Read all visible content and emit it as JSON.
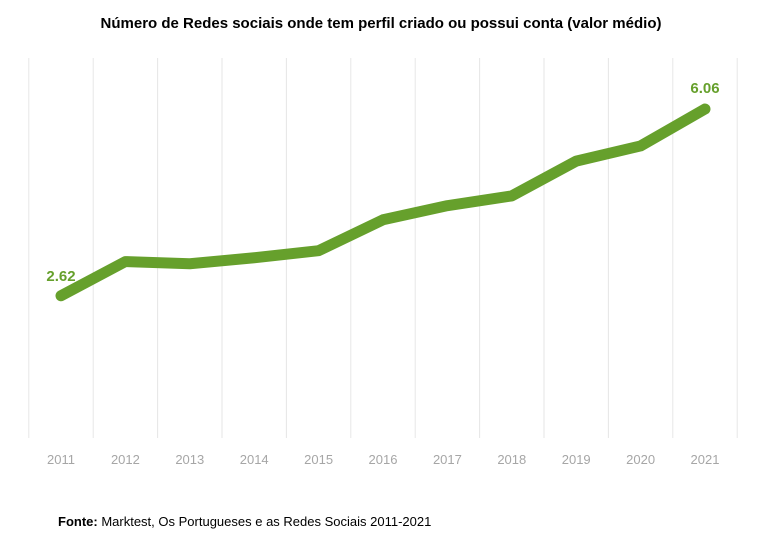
{
  "chart_data": {
    "type": "line",
    "title": "Número de Redes sociais onde tem perfil criado ou possui conta (valor médio)",
    "categories": [
      "2011",
      "2012",
      "2013",
      "2014",
      "2015",
      "2016",
      "2017",
      "2018",
      "2019",
      "2020",
      "2021"
    ],
    "series": [
      {
        "name": "Valor médio",
        "values": [
          2.62,
          3.25,
          3.21,
          3.32,
          3.45,
          4.02,
          4.28,
          4.46,
          5.1,
          5.38,
          6.06
        ]
      }
    ],
    "data_labels": [
      "2.62",
      "6.06"
    ],
    "xlabel": "",
    "ylabel": "",
    "ylim": [
      0,
      7
    ],
    "grid": "vertical",
    "legend": "none",
    "line_color": "#66a02c",
    "label_color": "#66a02c"
  },
  "source": {
    "label": "Fonte:",
    "text": " Marktest, Os Portugueses e as Redes Sociais 2011-2021"
  }
}
